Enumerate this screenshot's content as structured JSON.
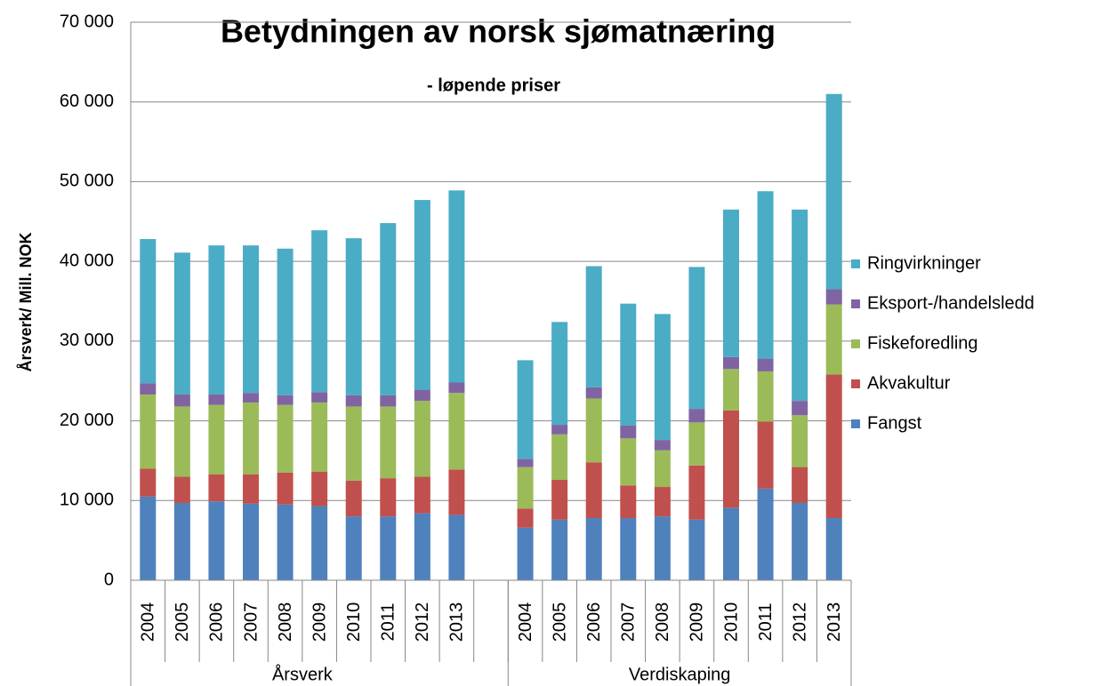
{
  "chart_data": {
    "type": "stacked-bar",
    "title": "Betydningen av norsk sjømatnæring",
    "subtitle": "- løpende priser",
    "y_label": "Årsverk/ Mill. NOK",
    "categories": [
      "2004",
      "2005",
      "2006",
      "2007",
      "2008",
      "2009",
      "2010",
      "2011",
      "2012",
      "2013",
      null,
      "2004",
      "2005",
      "2006",
      "2007",
      "2008",
      "2009",
      "2010",
      "2011",
      "2012",
      "2013"
    ],
    "category_groups": [
      "Årsverk",
      "Verdiskaping"
    ],
    "ylim": [
      0,
      70000
    ],
    "yticks": [
      0,
      {
        "value": 10000,
        "label": "10 000"
      },
      {
        "value": 20000,
        "label": "20 000"
      },
      {
        "value": 30000,
        "label": "30 000"
      },
      {
        "value": 40000,
        "label": "40 000"
      },
      {
        "value": 50000,
        "label": "50 000"
      },
      {
        "value": 60000,
        "label": "60 000"
      },
      {
        "value": 70000,
        "label": "70 000"
      }
    ],
    "grid": true,
    "legend": "right",
    "series": [
      {
        "name": "Fangst",
        "color": "#4f81bd",
        "values": [
          10500,
          9700,
          9900,
          9600,
          9500,
          9300,
          8000,
          8000,
          8400,
          8200,
          null,
          6600,
          7600,
          7800,
          7800,
          8000,
          7600,
          9100,
          11500,
          9700,
          7800
        ]
      },
      {
        "name": "Akvakultur",
        "color": "#c0504d",
        "values": [
          3500,
          3300,
          3400,
          3700,
          4000,
          4300,
          4500,
          4800,
          4600,
          5700,
          null,
          2400,
          5000,
          7000,
          4100,
          3700,
          6800,
          12200,
          8400,
          4500,
          18000
        ]
      },
      {
        "name": "Fiskeforedling",
        "color": "#9bbb59",
        "values": [
          9300,
          8800,
          8700,
          9000,
          8500,
          8700,
          9300,
          9000,
          9500,
          9600,
          null,
          5200,
          5700,
          8000,
          5900,
          4600,
          5400,
          5200,
          6300,
          6500,
          8800
        ]
      },
      {
        "name": "Eksport-/handelsledd",
        "color": "#8064a2",
        "values": [
          1400,
          1500,
          1300,
          1200,
          1200,
          1300,
          1400,
          1400,
          1400,
          1300,
          null,
          1000,
          1200,
          1400,
          1600,
          1300,
          1700,
          1500,
          1600,
          1800,
          1900
        ]
      },
      {
        "name": "Ringvirkninger",
        "color": "#4bacc6",
        "values": [
          18100,
          17800,
          18700,
          18500,
          18400,
          20300,
          19700,
          21600,
          23800,
          24100,
          null,
          12400,
          12900,
          15200,
          15300,
          15800,
          17800,
          18500,
          21000,
          24000,
          24500
        ]
      }
    ]
  }
}
